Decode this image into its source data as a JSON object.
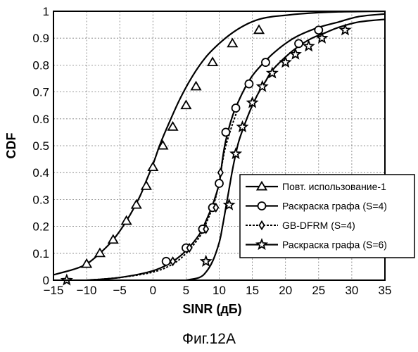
{
  "chart_data": {
    "type": "line",
    "xlabel": "SINR (дБ)",
    "ylabel": "CDF",
    "xlim": [
      -15,
      35
    ],
    "ylim": [
      0,
      1
    ],
    "xticks": [
      -15,
      -10,
      -5,
      0,
      5,
      10,
      15,
      20,
      25,
      30,
      35
    ],
    "yticks": [
      0,
      0.1,
      0.2,
      0.3,
      0.4,
      0.5,
      0.6,
      0.7,
      0.8,
      0.9,
      1
    ],
    "ytick_labels": [
      "0",
      "0.1",
      "0.2",
      "0.3",
      "0.4",
      "0.5",
      "0.6",
      "0.7",
      "0.8",
      "0.9",
      "1"
    ],
    "grid": true,
    "legend_position": "center-right",
    "series": [
      {
        "name": "Повт. использование-1",
        "marker": "triangle",
        "style": "solid",
        "x": [
          -15,
          -12,
          -10,
          -8,
          -6,
          -4,
          -2,
          -1,
          0,
          1,
          2,
          4,
          6,
          8,
          10,
          12,
          14,
          16,
          18,
          20,
          22,
          25,
          28,
          31,
          35
        ],
        "y": [
          0.02,
          0.04,
          0.06,
          0.1,
          0.15,
          0.22,
          0.31,
          0.37,
          0.43,
          0.5,
          0.56,
          0.67,
          0.76,
          0.83,
          0.88,
          0.92,
          0.95,
          0.97,
          0.98,
          0.985,
          0.99,
          0.995,
          0.998,
          0.999,
          1.0
        ],
        "marker_x": [
          -10,
          -8,
          -6,
          -4,
          -2.5,
          -1,
          0,
          1.5,
          3,
          5,
          6.5,
          9,
          12,
          16
        ],
        "marker_y": [
          0.06,
          0.1,
          0.15,
          0.22,
          0.28,
          0.35,
          0.42,
          0.5,
          0.57,
          0.65,
          0.72,
          0.81,
          0.88,
          0.93
        ]
      },
      {
        "name": "Раскраска графа (S=4)",
        "marker": "circle",
        "style": "solid",
        "x": [
          -10,
          -5,
          0,
          3,
          5,
          7,
          8,
          9,
          10,
          10.5,
          11,
          12,
          13,
          14,
          15,
          16,
          18,
          20,
          22,
          25,
          28,
          31,
          35
        ],
        "y": [
          0.0,
          0.01,
          0.035,
          0.07,
          0.11,
          0.17,
          0.22,
          0.28,
          0.36,
          0.45,
          0.52,
          0.61,
          0.67,
          0.72,
          0.76,
          0.79,
          0.84,
          0.88,
          0.91,
          0.94,
          0.96,
          0.98,
          0.99
        ],
        "marker_x": [
          2,
          5,
          7.5,
          9,
          10,
          11,
          12.5,
          14.5,
          17,
          22,
          25
        ],
        "marker_y": [
          0.07,
          0.12,
          0.19,
          0.27,
          0.36,
          0.55,
          0.64,
          0.73,
          0.81,
          0.88,
          0.93
        ]
      },
      {
        "name": "GB-DFRM (S=4)",
        "marker": "diamond",
        "style": "dashed",
        "x": [
          -10,
          -5,
          0,
          3,
          5,
          7,
          8,
          9,
          9.5,
          10,
          10.5,
          11,
          12,
          13
        ],
        "y": [
          0.0,
          0.01,
          0.03,
          0.06,
          0.1,
          0.16,
          0.21,
          0.27,
          0.31,
          0.37,
          0.44,
          0.5,
          0.58,
          0.65
        ],
        "marker_x": [
          3,
          5.5,
          8,
          9.5,
          10.2
        ],
        "marker_y": [
          0.07,
          0.12,
          0.19,
          0.27,
          0.4
        ]
      },
      {
        "name": "Раскраска графа (S=6)",
        "marker": "star",
        "style": "solid",
        "x": [
          5,
          7,
          8,
          9,
          10,
          10.5,
          11,
          11.5,
          12,
          12.5,
          13,
          14,
          15,
          16,
          17,
          18,
          20,
          22,
          24,
          26,
          28,
          31,
          35
        ],
        "y": [
          0.0,
          0.01,
          0.03,
          0.07,
          0.14,
          0.2,
          0.27,
          0.34,
          0.41,
          0.47,
          0.52,
          0.59,
          0.65,
          0.7,
          0.74,
          0.78,
          0.83,
          0.87,
          0.9,
          0.92,
          0.94,
          0.96,
          0.97
        ],
        "marker_x": [
          -13,
          8,
          11.5,
          12.5,
          13.5,
          15,
          16.5,
          18,
          20,
          21.5,
          23.5,
          25.5,
          29
        ],
        "marker_y": [
          0.0,
          0.07,
          0.28,
          0.47,
          0.57,
          0.66,
          0.72,
          0.77,
          0.81,
          0.84,
          0.87,
          0.9,
          0.93
        ]
      }
    ]
  },
  "caption": "Фиг.12А"
}
